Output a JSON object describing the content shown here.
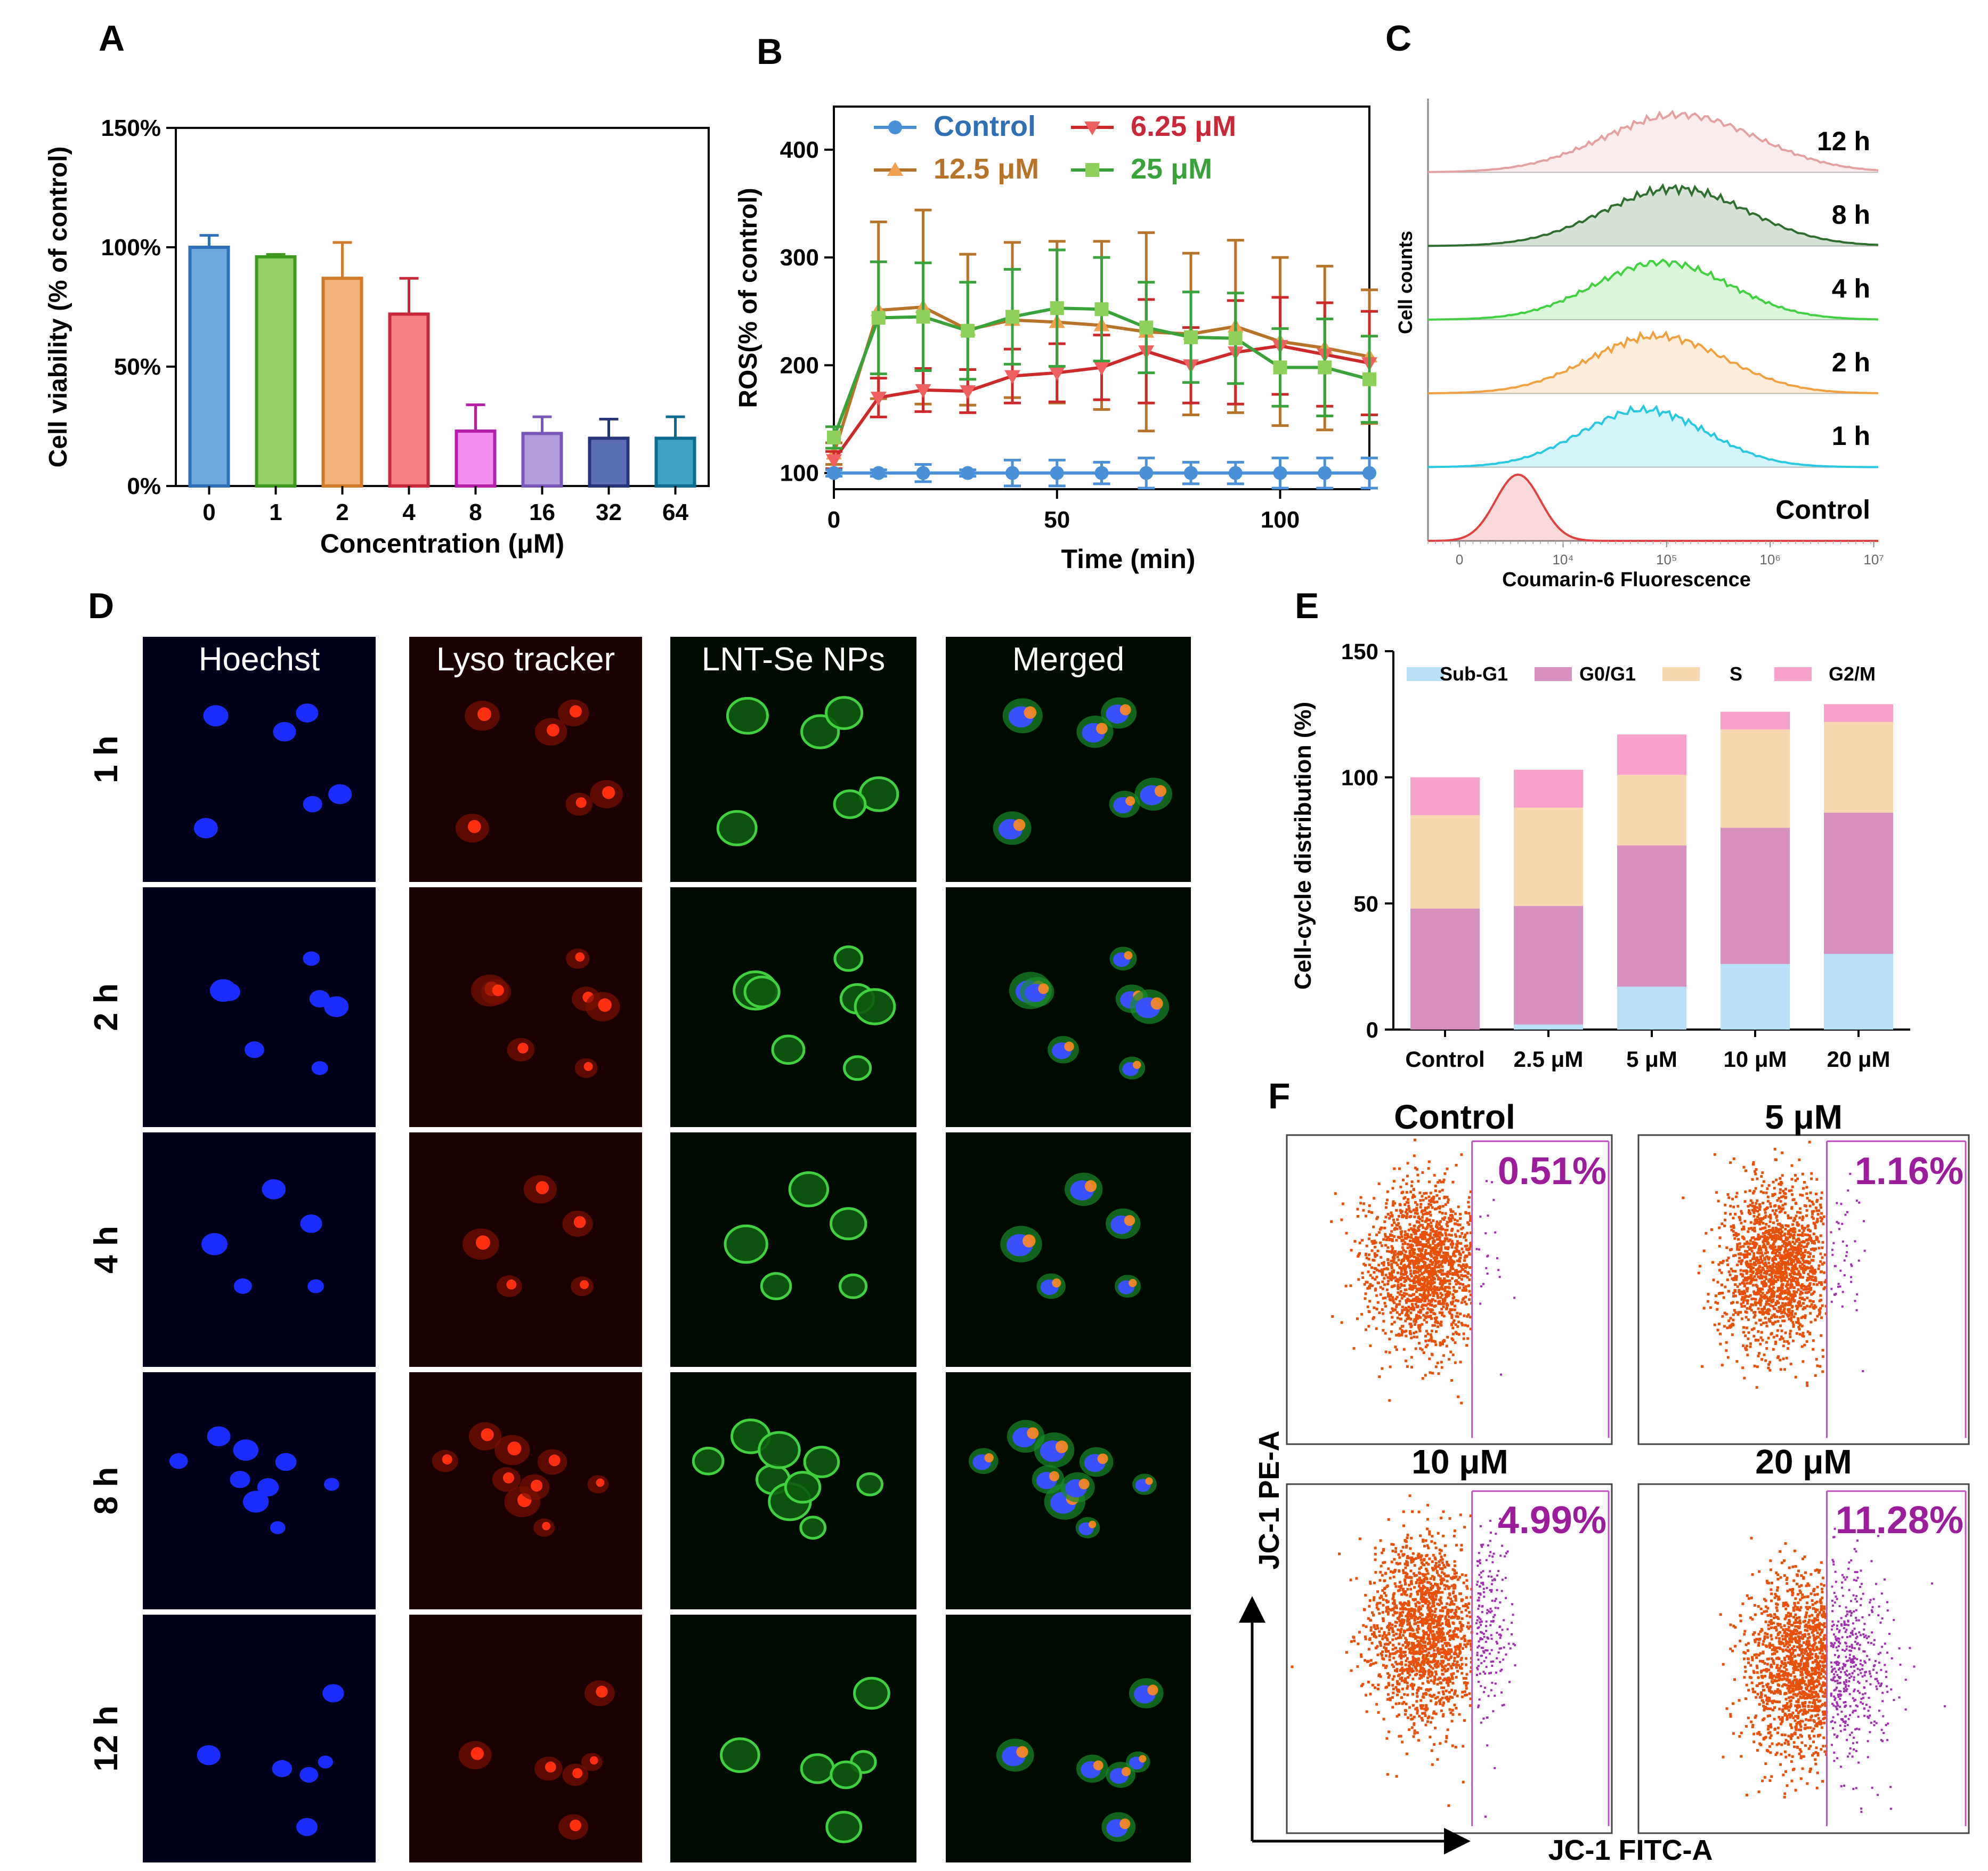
{
  "panel_labels": {
    "A": "A",
    "B": "B",
    "C": "C",
    "D": "D",
    "E": "E",
    "F": "F"
  },
  "colors": {
    "bar_fills": [
      "#6fa8dc",
      "#93d067",
      "#f2b27a",
      "#f67f86",
      "#f48ff0",
      "#b39ddb",
      "#5b6fb5",
      "#3fa3c4"
    ],
    "bar_strokes": [
      "#2f6fb8",
      "#3f9a22",
      "#d07a2a",
      "#c8283a",
      "#b51fa8",
      "#7a56b8",
      "#26347a",
      "#0e6a8f"
    ],
    "ros": {
      "control": "#4a90d9",
      "c625": "#cc2a2a",
      "c125": "#b8732a",
      "c25": "#3aa23a"
    },
    "hist": [
      "#e04040",
      "#28c8e0",
      "#f0a040",
      "#40d040",
      "#2e6e2e",
      "#e4a0a0"
    ],
    "cellcycle": {
      "subg1": "#b8e0f8",
      "g0g1": "#d890c0",
      "s": "#f8d8b0",
      "g2m": "#f8a0cc"
    },
    "flow": {
      "main": "#e8500a",
      "gated": "#a030b0",
      "gate": "#c050c0",
      "pct": "#9b1d9b"
    }
  },
  "chart_data": [
    {
      "id": "A",
      "type": "bar",
      "title": "",
      "xlabel": "Concentration (μM)",
      "ylabel": "Cell viability (% of control)",
      "categories": [
        "0",
        "1",
        "2",
        "4",
        "8",
        "16",
        "32",
        "64"
      ],
      "values": [
        100,
        96,
        87,
        72,
        23,
        22,
        20,
        20
      ],
      "errors": [
        5,
        1,
        15,
        15,
        11,
        7,
        8,
        9
      ],
      "ylim": [
        0,
        150
      ],
      "yticks": [
        0,
        50,
        100,
        150
      ],
      "yticklabels": [
        "0%",
        "50%",
        "100%",
        "150%"
      ]
    },
    {
      "id": "B",
      "type": "line",
      "xlabel": "Time (min)",
      "ylabel": "ROS(% of control)",
      "xlim": [
        0,
        120
      ],
      "ylim": [
        85,
        440
      ],
      "xticks": [
        0,
        50,
        100
      ],
      "yticks": [
        100,
        200,
        300,
        400
      ],
      "x": [
        0,
        10,
        20,
        30,
        40,
        50,
        60,
        70,
        80,
        90,
        100,
        110,
        120
      ],
      "series": [
        {
          "name": "Control",
          "marker": "circle",
          "values": [
            100,
            100,
            100,
            100,
            100,
            100,
            100,
            100,
            100,
            100,
            100,
            100,
            100
          ],
          "errors": [
            3,
            3,
            8,
            3,
            12,
            12,
            10,
            14,
            10,
            10,
            14,
            14,
            14
          ]
        },
        {
          "name": "6.25 μM",
          "marker": "triangle-down",
          "values": [
            112,
            170,
            177,
            176,
            190,
            193,
            198,
            213,
            200,
            212,
            218,
            210,
            202
          ],
          "errors": [
            8,
            18,
            20,
            20,
            25,
            27,
            30,
            48,
            35,
            48,
            45,
            48,
            48
          ]
        },
        {
          "name": "12.5 μM",
          "marker": "triangle-up",
          "values": [
            118,
            251,
            254,
            233,
            242,
            240,
            237,
            231,
            229,
            236,
            222,
            216,
            208
          ],
          "errors": [
            10,
            82,
            90,
            70,
            72,
            75,
            78,
            92,
            75,
            80,
            78,
            76,
            62
          ]
        },
        {
          "name": "25  μM",
          "marker": "square",
          "values": [
            133,
            244,
            245,
            232,
            245,
            253,
            252,
            235,
            226,
            225,
            198,
            198,
            187
          ],
          "errors": [
            10,
            52,
            50,
            45,
            44,
            54,
            48,
            42,
            42,
            42,
            36,
            45,
            40
          ]
        }
      ]
    },
    {
      "id": "C",
      "type": "area",
      "xlabel": "Coumarin-6 Fluorescence",
      "ylabel": "Cell counts",
      "xtick_labels": [
        "0",
        "10⁴",
        "10⁵",
        "10⁶",
        "10⁷"
      ],
      "series": [
        {
          "name": "Control",
          "center": 0.2,
          "width": 0.05
        },
        {
          "name": "1 h",
          "center": 0.48,
          "width": 0.14
        },
        {
          "name": "2 h",
          "center": 0.51,
          "width": 0.15
        },
        {
          "name": "4 h",
          "center": 0.52,
          "width": 0.15
        },
        {
          "name": "8 h",
          "center": 0.55,
          "width": 0.16
        },
        {
          "name": "12 h",
          "center": 0.56,
          "width": 0.17
        }
      ]
    },
    {
      "id": "E",
      "type": "bar",
      "stacked": true,
      "ylabel": "Cell-cycle distribution (%)",
      "ylim": [
        0,
        150
      ],
      "yticks": [
        0,
        50,
        100,
        150
      ],
      "categories": [
        "Control",
        "2.5 μM",
        "5 μM",
        "10 μM",
        "20 μM"
      ],
      "series": [
        {
          "name": "Sub-G1",
          "values": [
            0,
            2,
            17,
            26,
            30
          ]
        },
        {
          "name": "G0/G1",
          "values": [
            48,
            47,
            56,
            54,
            56
          ]
        },
        {
          "name": "S",
          "values": [
            37,
            39,
            28,
            39,
            36
          ]
        },
        {
          "name": "G2/M",
          "values": [
            15,
            15,
            16,
            7,
            7
          ]
        }
      ]
    },
    {
      "id": "F",
      "type": "scatter",
      "xlabel": "JC-1 FITC-A",
      "ylabel": "JC-1 PE-A",
      "plots": [
        {
          "title": "Control",
          "percent": "0.51%",
          "gated_fraction": 0.0051
        },
        {
          "title": "5 μM",
          "percent": "1.16%",
          "gated_fraction": 0.0116
        },
        {
          "title": "10 μM",
          "percent": "4.99%",
          "gated_fraction": 0.0499
        },
        {
          "title": "20 μM",
          "percent": "11.28%",
          "gated_fraction": 0.1128
        }
      ]
    }
  ],
  "microscopy": {
    "columns": [
      "Hoechst",
      "Lyso tracker",
      "LNT-Se NPs",
      "Merged"
    ],
    "rows": [
      "1 h",
      "2 h",
      "4 h",
      "8 h",
      "12 h"
    ]
  }
}
